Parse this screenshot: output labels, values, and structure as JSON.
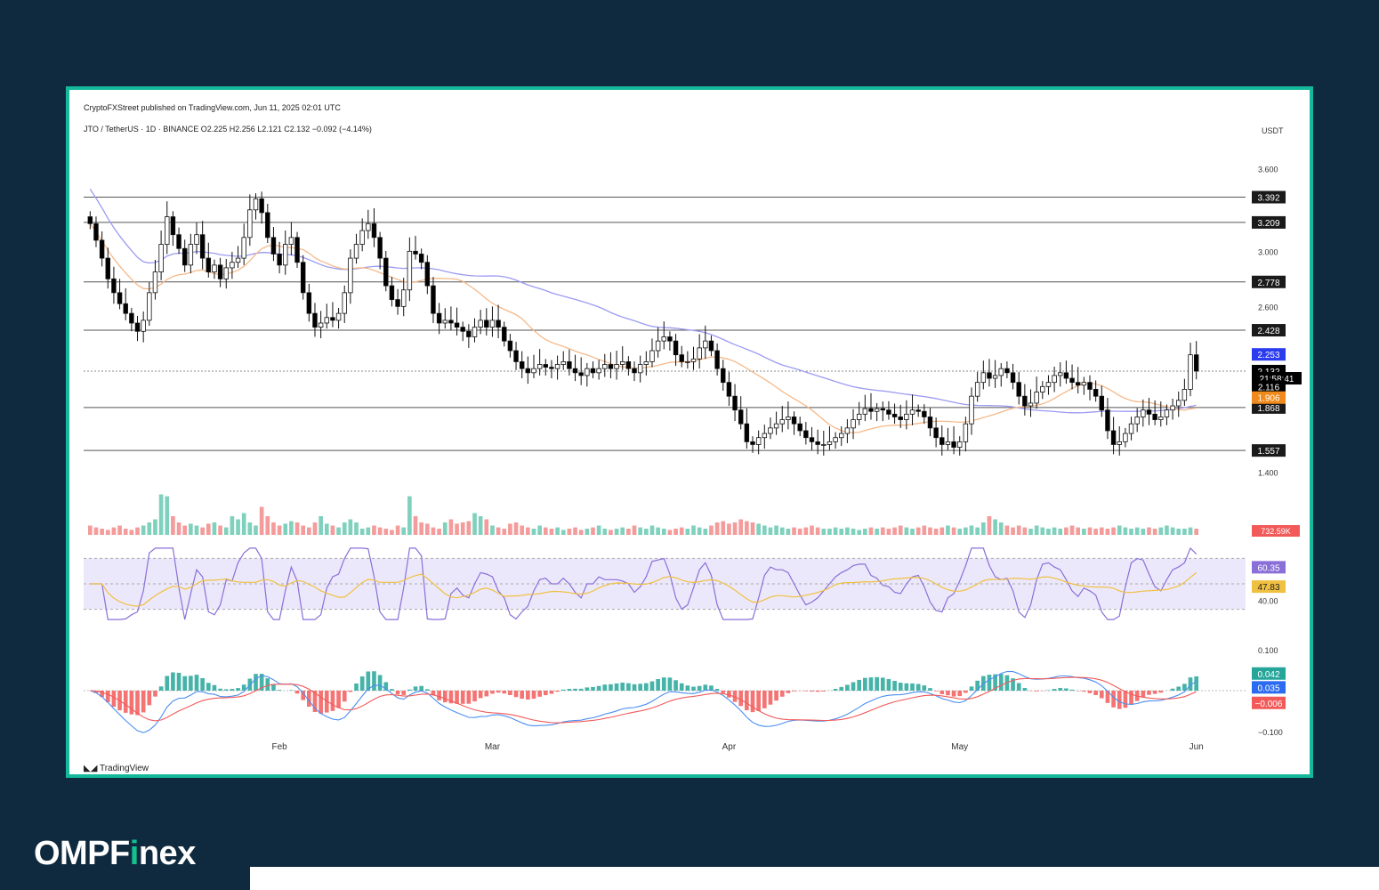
{
  "header": {
    "published": "CryptoFXStreet published on TradingView.com, Jun 11, 2025 02:01 UTC",
    "symbol_line": "JTO / TetherUS · 1D · BINANCE  O2.225  H2.256  L2.121  C2.132  −0.092 (−4.14%)"
  },
  "footer": {
    "tradingview": "TradingView",
    "brand_main": "OMPF",
    "brand_accent": "i",
    "brand_end": "nex"
  },
  "colors": {
    "background": "#0f2a3f",
    "frame": "#14b89a",
    "up": "#ffffff",
    "down": "#000000",
    "vol_up": "#7fd1bd",
    "vol_down": "#f49b9b",
    "ma_long": "#9b9bf2",
    "ma_short": "#f5b98a",
    "rsi": "#8a6fd8",
    "rsi_ma": "#f0c040",
    "macd": "#4a8ff0",
    "signal": "#f25a5a"
  },
  "chart_data": {
    "type": "candlestick",
    "currency_label": "USDT",
    "y_ticks": [
      "3.600",
      "3.000",
      "2.600",
      "1.400"
    ],
    "ylim": [
      1.3,
      3.75
    ],
    "month_labels": [
      {
        "label": "Feb",
        "index": 32
      },
      {
        "label": "Mar",
        "index": 68
      },
      {
        "label": "Apr",
        "index": 108
      },
      {
        "label": "May",
        "index": 147
      },
      {
        "label": "Jun",
        "index": 187
      }
    ],
    "levels": [
      {
        "value": 3.392,
        "label": "3.392"
      },
      {
        "value": 3.209,
        "label": "3.209"
      },
      {
        "value": 2.778,
        "label": "2.778"
      },
      {
        "value": 2.428,
        "label": "2.428"
      },
      {
        "value": 1.868,
        "label": "1.868"
      },
      {
        "value": 1.557,
        "label": "1.557"
      }
    ],
    "badges": [
      {
        "label": "2.253",
        "value": 2.253,
        "color": "#2b3bf0"
      },
      {
        "label": "2.132",
        "value": 2.132,
        "color": "#000000"
      },
      {
        "label": "21:58:41",
        "value": 2.08,
        "color": "#000000"
      },
      {
        "label": "2.116",
        "value": 2.02,
        "color": "#000000"
      },
      {
        "label": "1.906",
        "value": 1.94,
        "color": "#f08a1c"
      }
    ],
    "last_price": 2.132,
    "vol_badge": "732.59K",
    "rsi": {
      "value_label": "60.35",
      "ma_label": "47.83",
      "tick": "40.00",
      "upper": 70,
      "lower": 30,
      "ylim": [
        20,
        80
      ]
    },
    "macd": {
      "ticks": [
        "0.100",
        "−0.100"
      ],
      "hist_label": "0.042",
      "macd_label": "0.035",
      "signal_label": "−0.006",
      "ylim": [
        -0.12,
        0.12
      ]
    },
    "prices": [
      3.2,
      3.08,
      2.95,
      2.8,
      2.7,
      2.62,
      2.55,
      2.48,
      2.42,
      2.5,
      2.7,
      2.85,
      3.05,
      3.25,
      3.12,
      3.02,
      2.9,
      3.05,
      3.12,
      2.95,
      2.85,
      2.9,
      2.8,
      2.88,
      2.92,
      2.95,
      3.1,
      3.3,
      3.38,
      3.28,
      3.1,
      2.98,
      2.9,
      3.05,
      3.1,
      2.92,
      2.7,
      2.55,
      2.45,
      2.48,
      2.52,
      2.5,
      2.55,
      2.7,
      2.95,
      3.05,
      3.15,
      3.2,
      3.1,
      2.95,
      2.75,
      2.65,
      2.6,
      2.72,
      3.0,
      2.98,
      2.92,
      2.75,
      2.55,
      2.48,
      2.5,
      2.48,
      2.45,
      2.42,
      2.38,
      2.45,
      2.5,
      2.45,
      2.5,
      2.45,
      2.35,
      2.28,
      2.2,
      2.15,
      2.12,
      2.15,
      2.18,
      2.16,
      2.15,
      2.18,
      2.2,
      2.15,
      2.12,
      2.1,
      2.15,
      2.12,
      2.15,
      2.18,
      2.15,
      2.18,
      2.2,
      2.15,
      2.12,
      2.18,
      2.2,
      2.28,
      2.35,
      2.38,
      2.35,
      2.25,
      2.2,
      2.2,
      2.22,
      2.3,
      2.35,
      2.28,
      2.15,
      2.05,
      1.95,
      1.85,
      1.75,
      1.62,
      1.6,
      1.65,
      1.68,
      1.72,
      1.75,
      1.78,
      1.8,
      1.75,
      1.7,
      1.65,
      1.62,
      1.6,
      1.6,
      1.62,
      1.65,
      1.68,
      1.72,
      1.78,
      1.82,
      1.86,
      1.84,
      1.86,
      1.85,
      1.82,
      1.8,
      1.78,
      1.82,
      1.85,
      1.84,
      1.8,
      1.72,
      1.65,
      1.6,
      1.62,
      1.58,
      1.62,
      1.75,
      1.95,
      2.05,
      2.12,
      2.08,
      2.1,
      2.15,
      2.12,
      2.05,
      1.95,
      1.88,
      1.9,
      1.98,
      2.02,
      2.05,
      2.1,
      2.12,
      2.08,
      2.05,
      2.03,
      2.05,
      2.0,
      1.95,
      1.85,
      1.7,
      1.6,
      1.62,
      1.68,
      1.75,
      1.8,
      1.85,
      1.82,
      1.78,
      1.8,
      1.85,
      1.88,
      1.92,
      2.0,
      2.25,
      2.132
    ],
    "volumes": [
      0.15,
      0.12,
      0.1,
      0.08,
      0.12,
      0.15,
      0.1,
      0.08,
      0.12,
      0.15,
      0.2,
      0.25,
      0.65,
      0.62,
      0.3,
      0.2,
      0.15,
      0.18,
      0.15,
      0.12,
      0.18,
      0.2,
      0.15,
      0.12,
      0.3,
      0.25,
      0.35,
      0.2,
      0.15,
      0.45,
      0.3,
      0.2,
      0.15,
      0.18,
      0.22,
      0.2,
      0.15,
      0.12,
      0.2,
      0.3,
      0.18,
      0.15,
      0.12,
      0.2,
      0.25,
      0.2,
      0.1,
      0.12,
      0.15,
      0.12,
      0.1,
      0.08,
      0.15,
      0.12,
      0.62,
      0.3,
      0.2,
      0.18,
      0.12,
      0.1,
      0.2,
      0.25,
      0.18,
      0.2,
      0.22,
      0.35,
      0.3,
      0.25,
      0.15,
      0.12,
      0.1,
      0.18,
      0.2,
      0.15,
      0.12,
      0.1,
      0.15,
      0.12,
      0.1,
      0.12,
      0.08,
      0.1,
      0.12,
      0.08,
      0.1,
      0.12,
      0.15,
      0.1,
      0.08,
      0.1,
      0.12,
      0.1,
      0.15,
      0.12,
      0.1,
      0.15,
      0.12,
      0.1,
      0.08,
      0.1,
      0.12,
      0.1,
      0.15,
      0.12,
      0.1,
      0.15,
      0.2,
      0.22,
      0.18,
      0.2,
      0.25,
      0.22,
      0.2,
      0.18,
      0.15,
      0.12,
      0.15,
      0.12,
      0.1,
      0.12,
      0.1,
      0.12,
      0.15,
      0.12,
      0.1,
      0.1,
      0.12,
      0.1,
      0.12,
      0.1,
      0.08,
      0.1,
      0.12,
      0.1,
      0.12,
      0.1,
      0.12,
      0.15,
      0.12,
      0.1,
      0.12,
      0.15,
      0.12,
      0.1,
      0.12,
      0.15,
      0.12,
      0.1,
      0.12,
      0.15,
      0.12,
      0.2,
      0.3,
      0.25,
      0.2,
      0.15,
      0.12,
      0.15,
      0.12,
      0.1,
      0.15,
      0.12,
      0.1,
      0.12,
      0.1,
      0.12,
      0.15,
      0.12,
      0.1,
      0.12,
      0.1,
      0.12,
      0.1,
      0.12,
      0.15,
      0.12,
      0.1,
      0.12,
      0.1,
      0.12,
      0.1,
      0.12,
      0.15,
      0.12,
      0.1,
      0.1,
      0.12,
      0.1,
      0.12,
      0.1,
      0.35,
      0.05
    ]
  }
}
